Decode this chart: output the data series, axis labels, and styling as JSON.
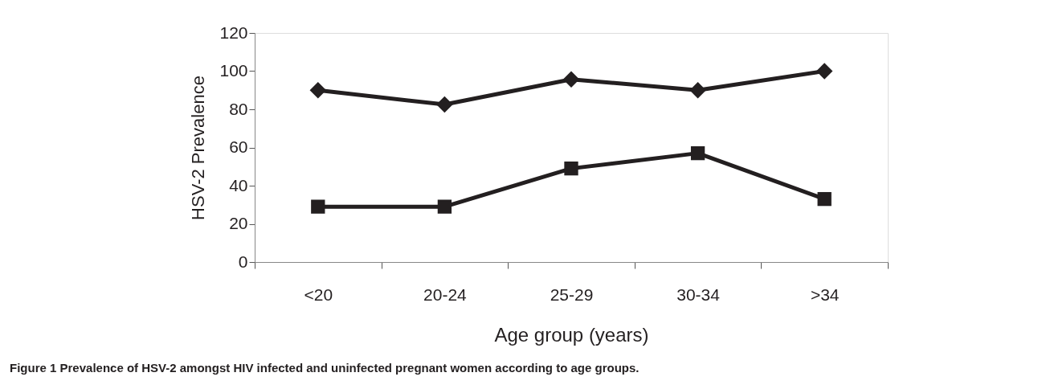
{
  "chart_data": {
    "type": "line",
    "xlabel": "Age group (years)",
    "ylabel": "HSV-2 Prevalence",
    "categories": [
      "<20",
      "20-24",
      "25-29",
      "30-34",
      ">34"
    ],
    "series": [
      {
        "color": "#231f20",
        "marker": "diamond",
        "values": [
          90,
          82.5,
          95.7,
          90,
          100
        ]
      },
      {
        "color": "#231f20",
        "marker": "square",
        "values": [
          29,
          29,
          49,
          57,
          33
        ]
      }
    ],
    "ylim": [
      0,
      120
    ],
    "yticks": [
      0,
      20,
      40,
      60,
      80,
      100,
      120
    ],
    "grid": false,
    "line_style": "solid",
    "annotations": [
      "Figure 1 Prevalence of HSV-2 amongst HIV infected and uninfected pregnant women according to age groups."
    ]
  }
}
